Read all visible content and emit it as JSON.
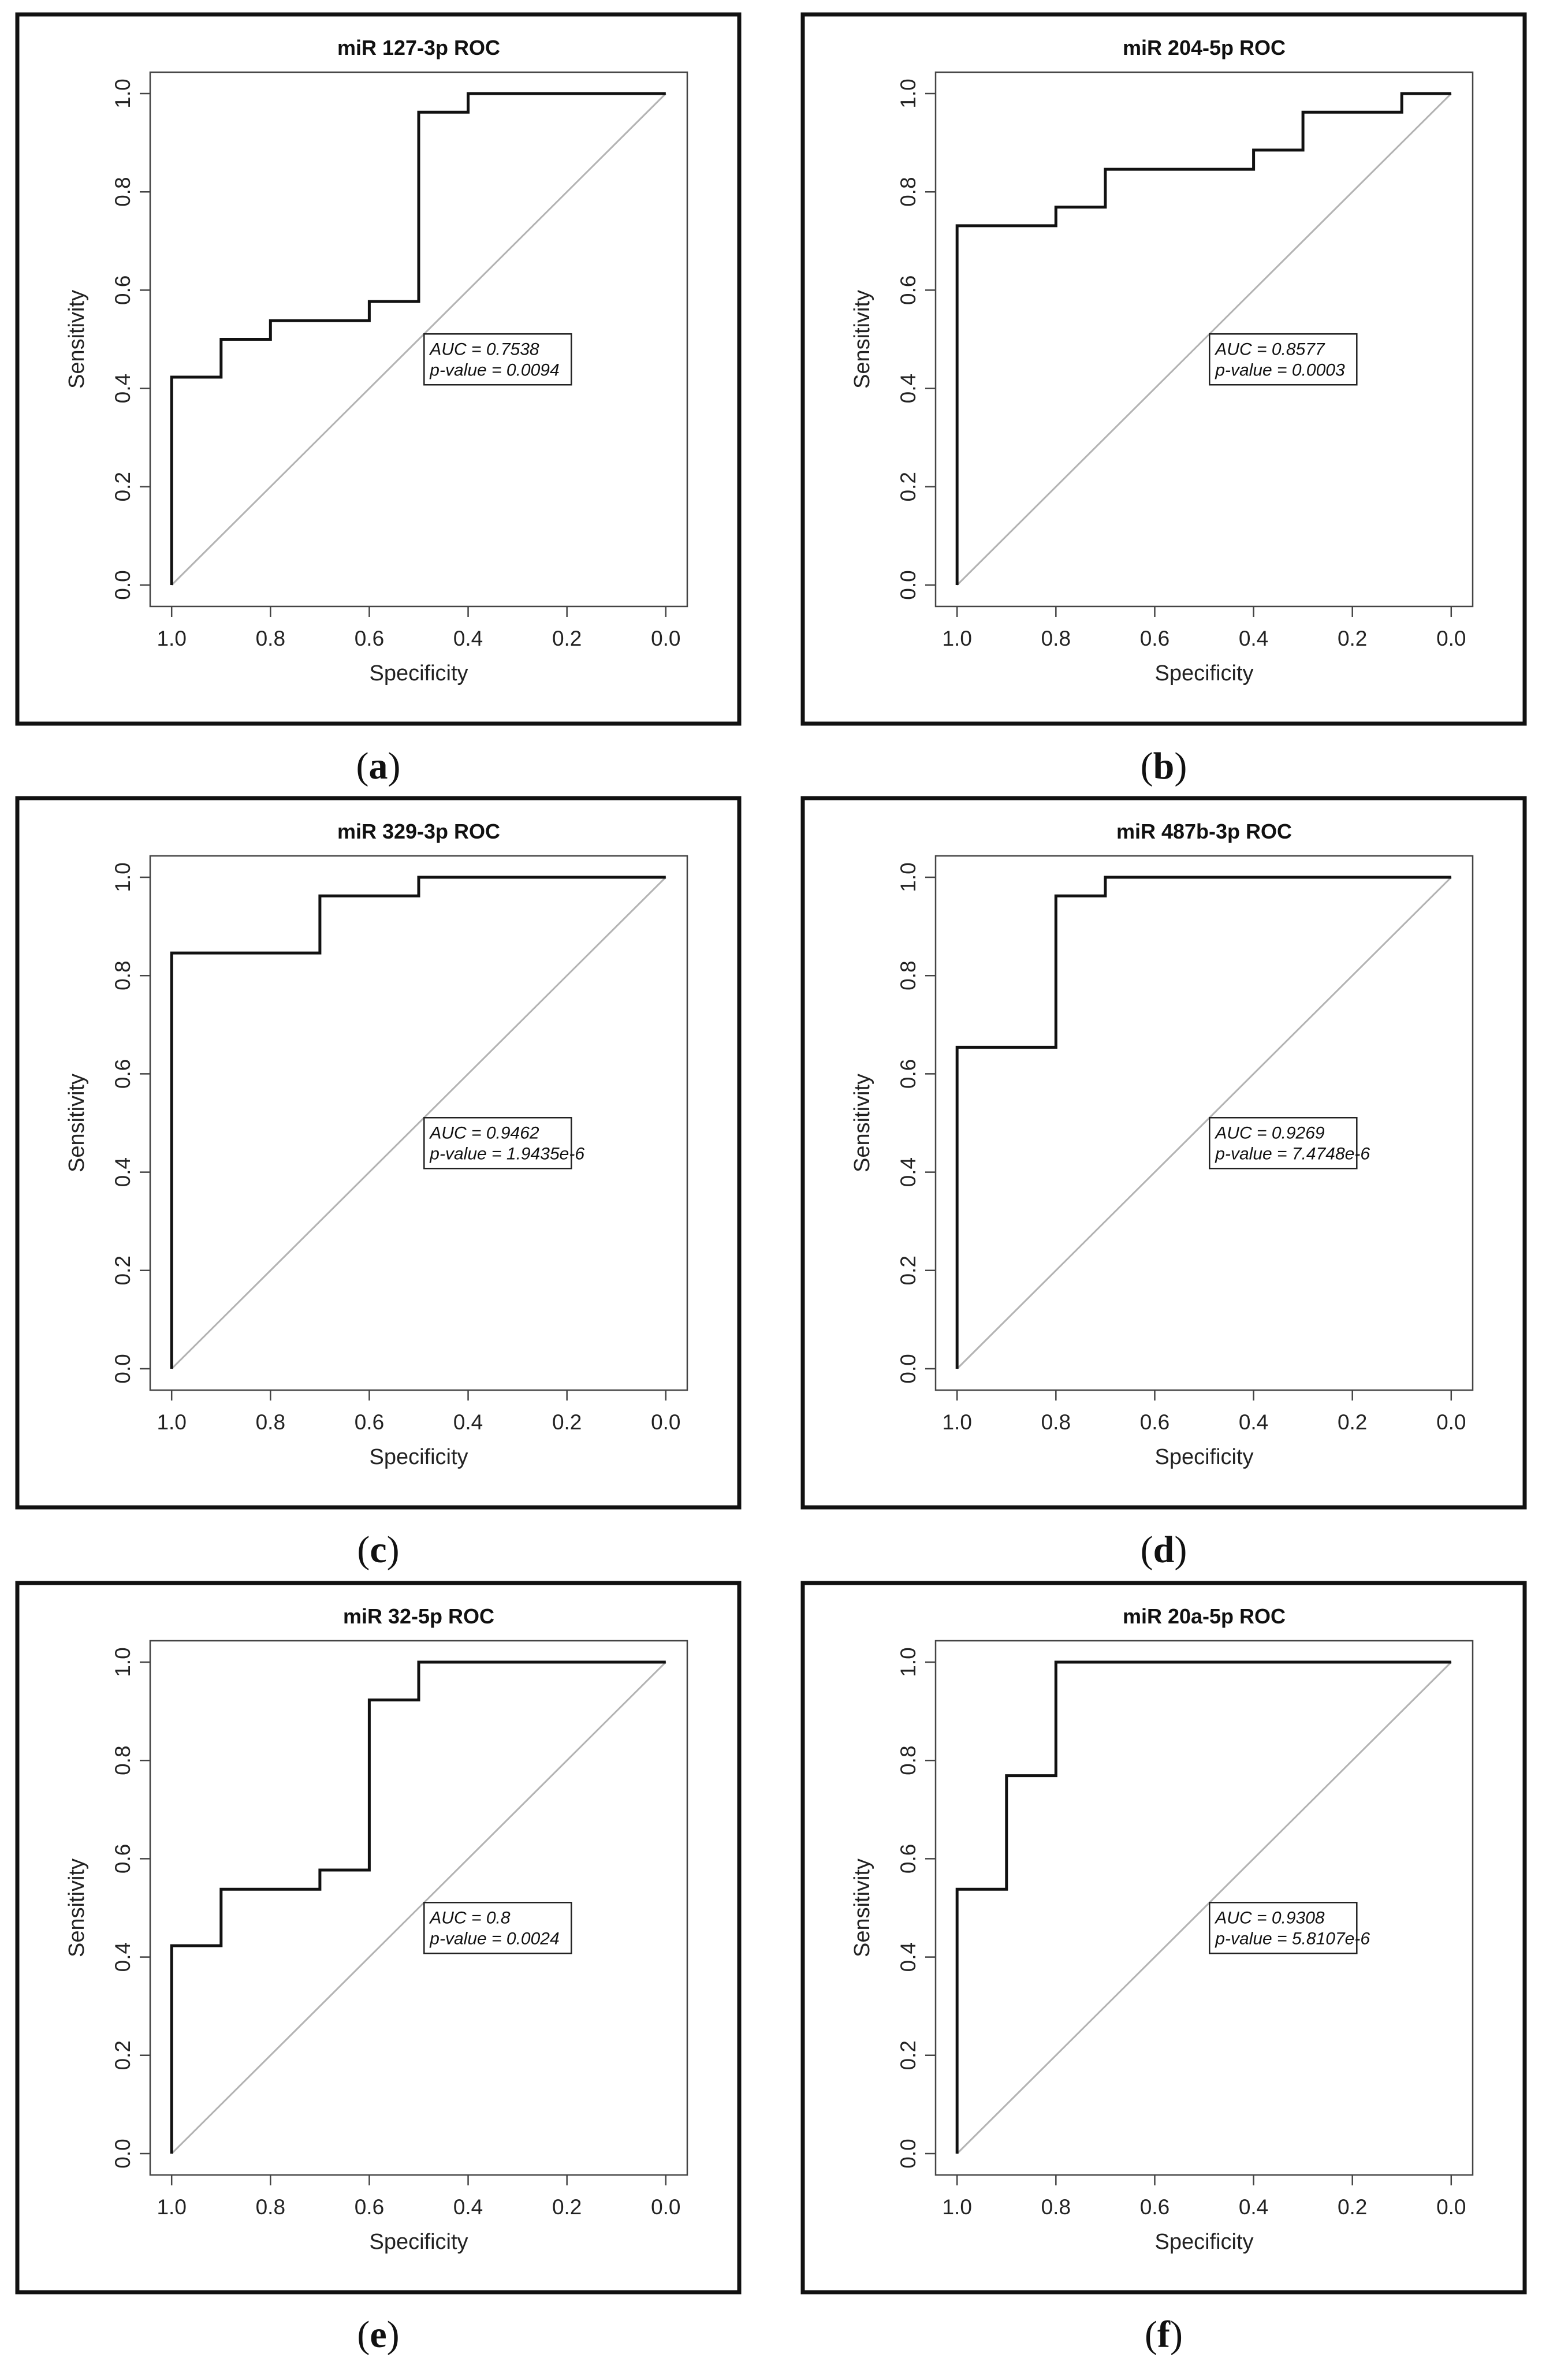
{
  "chart_data": [
    {
      "type": "line",
      "panel_label": "a",
      "title": "miR 127-3p ROC",
      "xlabel": "Specificity",
      "ylabel": "Sensitivity",
      "xlim": [
        1.0,
        0.0
      ],
      "ylim": [
        0.0,
        1.0
      ],
      "xticks": [
        "1.0",
        "0.8",
        "0.6",
        "0.4",
        "0.2",
        "0.0"
      ],
      "yticks": [
        "0.0",
        "0.2",
        "0.4",
        "0.6",
        "0.8",
        "1.0"
      ],
      "legend_lines": [
        "AUC = 0.7538",
        "p-value = 0.0094"
      ],
      "series": [
        {
          "name": "ROC",
          "points": [
            [
              1.0,
              0.0
            ],
            [
              1.0,
              0.423
            ],
            [
              0.9,
              0.423
            ],
            [
              0.9,
              0.5
            ],
            [
              0.8,
              0.5
            ],
            [
              0.8,
              0.538
            ],
            [
              0.6,
              0.538
            ],
            [
              0.6,
              0.577
            ],
            [
              0.5,
              0.577
            ],
            [
              0.5,
              0.962
            ],
            [
              0.4,
              0.962
            ],
            [
              0.4,
              1.0
            ],
            [
              0.0,
              1.0
            ]
          ]
        }
      ]
    },
    {
      "type": "line",
      "panel_label": "b",
      "title": "miR 204-5p ROC",
      "xlabel": "Specificity",
      "ylabel": "Sensitivity",
      "xlim": [
        1.0,
        0.0
      ],
      "ylim": [
        0.0,
        1.0
      ],
      "xticks": [
        "1.0",
        "0.8",
        "0.6",
        "0.4",
        "0.2",
        "0.0"
      ],
      "yticks": [
        "0.0",
        "0.2",
        "0.4",
        "0.6",
        "0.8",
        "1.0"
      ],
      "legend_lines": [
        "AUC = 0.8577",
        "p-value = 0.0003"
      ],
      "series": [
        {
          "name": "ROC",
          "points": [
            [
              1.0,
              0.0
            ],
            [
              1.0,
              0.731
            ],
            [
              0.8,
              0.731
            ],
            [
              0.8,
              0.769
            ],
            [
              0.7,
              0.769
            ],
            [
              0.7,
              0.846
            ],
            [
              0.4,
              0.846
            ],
            [
              0.4,
              0.885
            ],
            [
              0.3,
              0.885
            ],
            [
              0.3,
              0.962
            ],
            [
              0.1,
              0.962
            ],
            [
              0.1,
              1.0
            ],
            [
              0.0,
              1.0
            ]
          ]
        }
      ]
    },
    {
      "type": "line",
      "panel_label": "c",
      "title": "miR 329-3p ROC",
      "xlabel": "Specificity",
      "ylabel": "Sensitivity",
      "xlim": [
        1.0,
        0.0
      ],
      "ylim": [
        0.0,
        1.0
      ],
      "xticks": [
        "1.0",
        "0.8",
        "0.6",
        "0.4",
        "0.2",
        "0.0"
      ],
      "yticks": [
        "0.0",
        "0.2",
        "0.4",
        "0.6",
        "0.8",
        "1.0"
      ],
      "legend_lines": [
        "AUC = 0.9462",
        "p-value = 1.9435e-6"
      ],
      "series": [
        {
          "name": "ROC",
          "points": [
            [
              1.0,
              0.0
            ],
            [
              1.0,
              0.846
            ],
            [
              0.7,
              0.846
            ],
            [
              0.7,
              0.962
            ],
            [
              0.5,
              0.962
            ],
            [
              0.5,
              1.0
            ],
            [
              0.0,
              1.0
            ]
          ]
        }
      ]
    },
    {
      "type": "line",
      "panel_label": "d",
      "title": "miR 487b-3p ROC",
      "xlabel": "Specificity",
      "ylabel": "Sensitivity",
      "xlim": [
        1.0,
        0.0
      ],
      "ylim": [
        0.0,
        1.0
      ],
      "xticks": [
        "1.0",
        "0.8",
        "0.6",
        "0.4",
        "0.2",
        "0.0"
      ],
      "yticks": [
        "0.0",
        "0.2",
        "0.4",
        "0.6",
        "0.8",
        "1.0"
      ],
      "legend_lines": [
        "AUC = 0.9269",
        "p-value = 7.4748e-6"
      ],
      "series": [
        {
          "name": "ROC",
          "points": [
            [
              1.0,
              0.0
            ],
            [
              1.0,
              0.654
            ],
            [
              0.8,
              0.654
            ],
            [
              0.8,
              0.962
            ],
            [
              0.7,
              0.962
            ],
            [
              0.7,
              1.0
            ],
            [
              0.0,
              1.0
            ]
          ]
        }
      ]
    },
    {
      "type": "line",
      "panel_label": "e",
      "title": "miR 32-5p ROC",
      "xlabel": "Specificity",
      "ylabel": "Sensitivity",
      "xlim": [
        1.0,
        0.0
      ],
      "ylim": [
        0.0,
        1.0
      ],
      "xticks": [
        "1.0",
        "0.8",
        "0.6",
        "0.4",
        "0.2",
        "0.0"
      ],
      "yticks": [
        "0.0",
        "0.2",
        "0.4",
        "0.6",
        "0.8",
        "1.0"
      ],
      "legend_lines": [
        "AUC = 0.8",
        "p-value = 0.0024"
      ],
      "series": [
        {
          "name": "ROC",
          "points": [
            [
              1.0,
              0.0
            ],
            [
              1.0,
              0.423
            ],
            [
              0.9,
              0.423
            ],
            [
              0.9,
              0.538
            ],
            [
              0.7,
              0.538
            ],
            [
              0.7,
              0.577
            ],
            [
              0.6,
              0.577
            ],
            [
              0.6,
              0.923
            ],
            [
              0.5,
              0.923
            ],
            [
              0.5,
              1.0
            ],
            [
              0.0,
              1.0
            ]
          ]
        }
      ]
    },
    {
      "type": "line",
      "panel_label": "f",
      "title": "miR 20a-5p ROC",
      "xlabel": "Specificity",
      "ylabel": "Sensitivity",
      "xlim": [
        1.0,
        0.0
      ],
      "ylim": [
        0.0,
        1.0
      ],
      "xticks": [
        "1.0",
        "0.8",
        "0.6",
        "0.4",
        "0.2",
        "0.0"
      ],
      "yticks": [
        "0.0",
        "0.2",
        "0.4",
        "0.6",
        "0.8",
        "1.0"
      ],
      "legend_lines": [
        "AUC = 0.9308",
        "p-value = 5.8107e-6"
      ],
      "series": [
        {
          "name": "ROC",
          "points": [
            [
              1.0,
              0.0
            ],
            [
              1.0,
              0.538
            ],
            [
              0.9,
              0.538
            ],
            [
              0.9,
              0.769
            ],
            [
              0.8,
              0.769
            ],
            [
              0.8,
              1.0
            ],
            [
              0.0,
              1.0
            ]
          ]
        }
      ]
    }
  ],
  "colors": {
    "frame": "#111111",
    "roc_line": "#111111",
    "diagonal": "#b3b3b3",
    "background": "#ffffff"
  }
}
